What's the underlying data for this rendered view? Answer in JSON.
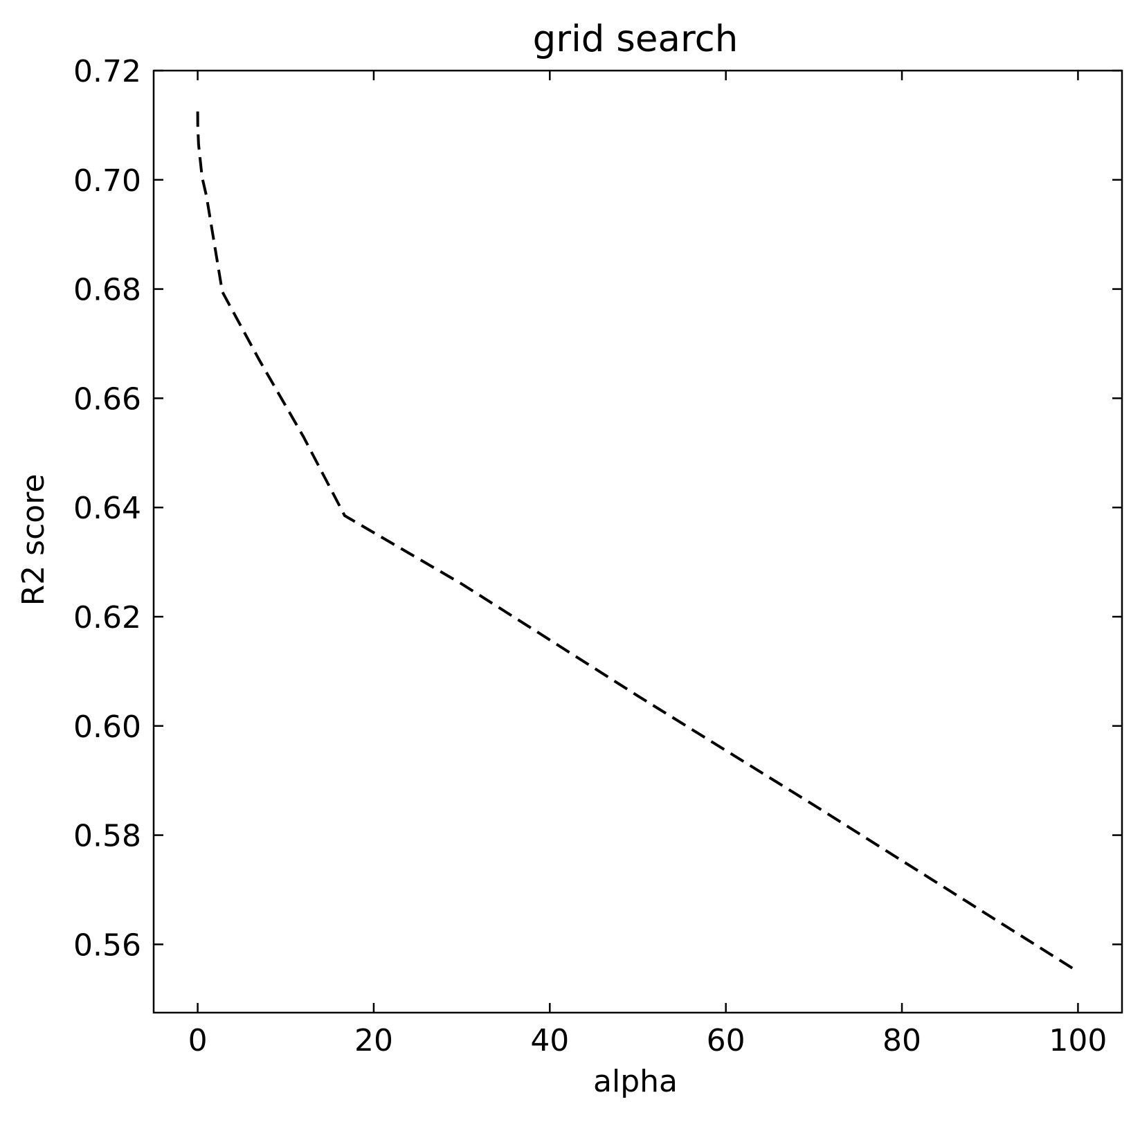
{
  "chart_data": {
    "type": "line",
    "title": "grid search",
    "xlabel": "alpha",
    "ylabel": "R2 score",
    "xlim": [
      -5,
      105
    ],
    "ylim": [
      0.5475,
      0.72
    ],
    "xticks": [
      0,
      20,
      40,
      60,
      80,
      100
    ],
    "xtick_labels": [
      "0",
      "20",
      "40",
      "60",
      "80",
      "100"
    ],
    "yticks": [
      0.56,
      0.58,
      0.6,
      0.62,
      0.64,
      0.66,
      0.68,
      0.7,
      0.72
    ],
    "ytick_labels": [
      "0.56",
      "0.58",
      "0.60",
      "0.62",
      "0.64",
      "0.66",
      "0.68",
      "0.70",
      "0.72"
    ],
    "grid": false,
    "tick_direction": "in",
    "series": [
      {
        "line_style": "dashed",
        "color": "#000000",
        "x": [
          0.001,
          0.01,
          0.1,
          0.5,
          1,
          2.8,
          7,
          12,
          16.7,
          30,
          50,
          70,
          100
        ],
        "y": [
          0.7125,
          0.71,
          0.7065,
          0.7005,
          0.697,
          0.6795,
          0.667,
          0.653,
          0.6385,
          0.626,
          0.6055,
          0.5855,
          0.555
        ]
      }
    ]
  }
}
